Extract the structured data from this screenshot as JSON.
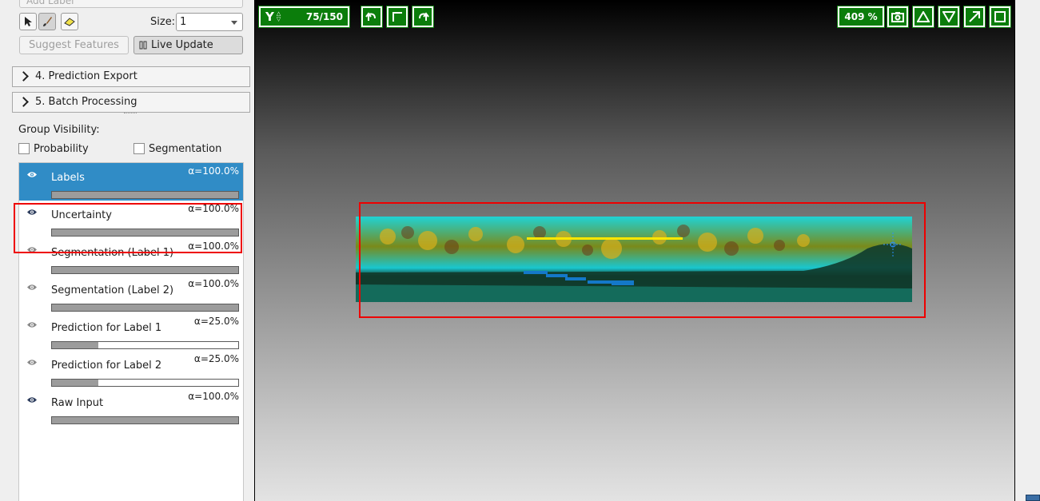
{
  "label_panel": {
    "add_label": "Add Label",
    "size_label": "Size:",
    "size_value": "1",
    "suggest_features": "Suggest Features",
    "live_update": "Live Update"
  },
  "sections": [
    {
      "label": "4. Prediction Export"
    },
    {
      "label": "5. Batch Processing"
    }
  ],
  "group_visibility": {
    "title": "Group Visibility:",
    "probability": "Probability",
    "segmentation": "Segmentation"
  },
  "layers": [
    {
      "name": "Labels",
      "alpha": "α=100.0%",
      "opacity": 1.0,
      "selected": true
    },
    {
      "name": "Uncertainty",
      "alpha": "α=100.0%",
      "opacity": 1.0
    },
    {
      "name": "Segmentation (Label 1)",
      "alpha": "α=100.0%",
      "opacity": 1.0
    },
    {
      "name": "Segmentation (Label 2)",
      "alpha": "α=100.0%",
      "opacity": 1.0
    },
    {
      "name": "Prediction for Label 1",
      "alpha": "α=25.0%",
      "opacity": 0.25
    },
    {
      "name": "Prediction for Label 2",
      "alpha": "α=25.0%",
      "opacity": 0.25
    },
    {
      "name": "Raw Input",
      "alpha": "α=100.0%",
      "opacity": 1.0
    }
  ],
  "viewer": {
    "axis": "Y",
    "slice": "75/150",
    "zoom": "409 %"
  },
  "colors": {
    "viewer_button": "#0b7d0b",
    "selection": "#308cc6",
    "annotation": "#ee0000"
  },
  "icons": [
    "pointer-icon",
    "brush-icon",
    "eraser-icon",
    "undo-icon",
    "crop-icon",
    "redo-icon",
    "camera-icon",
    "triangle-up-icon",
    "triangle-down-icon",
    "maximize-arrow-icon",
    "square-icon",
    "eye-icon"
  ]
}
